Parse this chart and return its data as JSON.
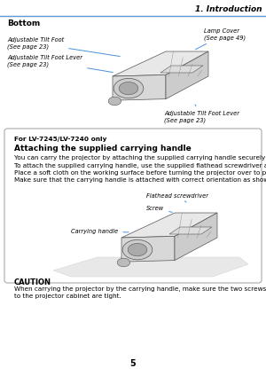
{
  "page_bg": "#ffffff",
  "header_text": "1. Introduction",
  "header_line_color": "#5b9bd5",
  "section1_title": "Bottom",
  "box_title1": "For LV-7245/LV-7240 only",
  "box_title2": "Attaching the supplied carrying handle",
  "box_body_lines": [
    "You can carry the projector by attaching the supplied carrying handle securely to the projector.",
    "To attach the supplied carrying handle, use the supplied flathead screwdriver and two screws.",
    "Place a soft cloth on the working surface before turning the projector over to prevent scratching the top cover.",
    "Make sure that the carrying handle is attached with correct orientation as shown below."
  ],
  "caution_title": "CAUTION",
  "caution_body_lines": [
    "When carrying the projector by the carrying handle, make sure the two screws that attach the carrying handle",
    "to the projector cabinet are tight."
  ],
  "page_num": "5",
  "arrow_color": "#4a90d9",
  "edge_color": "#555555",
  "box_edge_color": "#aaaaaa",
  "header_font_size": 6.5,
  "section_font_size": 6.5,
  "body_font_size": 5.2,
  "label_font_size": 4.8,
  "page_font_size": 7
}
